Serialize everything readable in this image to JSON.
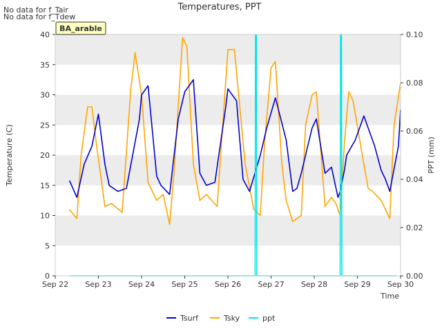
{
  "notes": [
    "No data for f_Tair",
    "No data for f_Tdew"
  ],
  "site_badge": "BA_arable",
  "chart_data": {
    "type": "line",
    "title": "Temperatures, PPT",
    "xlabel": "Time",
    "ylabel": "Temperature (C)",
    "y2label": "PPT (mm)",
    "ylim": [
      0,
      40
    ],
    "y2lim": [
      0.0,
      0.1
    ],
    "xlim": [
      "Sep 22",
      "Sep 30"
    ],
    "x_ticks": [
      "Sep 22",
      "Sep 23",
      "Sep 24",
      "Sep 25",
      "Sep 26",
      "Sep 27",
      "Sep 28",
      "Sep 29",
      "Sep 30"
    ],
    "y_ticks": [
      "0",
      "5",
      "10",
      "15",
      "20",
      "25",
      "30",
      "35",
      "40"
    ],
    "y2_ticks": [
      "0.00",
      "0.02",
      "0.04",
      "0.06",
      "0.08",
      "0.10"
    ],
    "grid": "horizontal bands",
    "legend_placement": "bottom-center",
    "colors": {
      "Tsurf": "#0000cc",
      "Tsky": "#ffa500",
      "ppt": "#00e5e5",
      "band": "#ececec"
    },
    "series": [
      {
        "name": "Tsurf",
        "axis": "left",
        "x": [
          22.33,
          22.5,
          22.67,
          22.85,
          23.0,
          23.15,
          23.25,
          23.45,
          23.65,
          23.95,
          24.0,
          24.15,
          24.35,
          24.45,
          24.65,
          24.85,
          25.0,
          25.2,
          25.35,
          25.5,
          25.7,
          25.95,
          26.0,
          26.2,
          26.35,
          26.5,
          26.75,
          26.9,
          27.1,
          27.35,
          27.5,
          27.6,
          27.7,
          27.95,
          28.05,
          28.25,
          28.4,
          28.55,
          28.6,
          28.7,
          28.75,
          28.95,
          29.15,
          29.4,
          29.55,
          29.65,
          29.75,
          29.95,
          30.0
        ],
        "y": [
          15.8,
          13.0,
          18.5,
          21.5,
          26.8,
          18.5,
          15.0,
          14.0,
          14.5,
          26.0,
          30.0,
          31.5,
          16.5,
          15.0,
          13.5,
          26.0,
          30.5,
          32.5,
          17.0,
          15.0,
          15.5,
          28.0,
          31.0,
          29.0,
          16.0,
          14.0,
          20.0,
          24.5,
          29.5,
          22.5,
          14.0,
          14.5,
          17.0,
          24.5,
          26.0,
          17.0,
          18.0,
          13.0,
          14.0,
          17.5,
          20.0,
          22.5,
          26.5,
          21.5,
          17.5,
          16.0,
          14.0,
          21.5,
          27.5
        ]
      },
      {
        "name": "Tsky",
        "axis": "left",
        "x": [
          22.33,
          22.5,
          22.6,
          22.75,
          22.85,
          22.95,
          23.15,
          23.3,
          23.55,
          23.75,
          23.85,
          24.0,
          24.15,
          24.35,
          24.5,
          24.65,
          24.75,
          24.95,
          25.05,
          25.2,
          25.35,
          25.5,
          25.75,
          26.0,
          26.15,
          26.4,
          26.6,
          26.75,
          26.85,
          27.0,
          27.1,
          27.25,
          27.35,
          27.5,
          27.7,
          27.8,
          27.95,
          28.05,
          28.25,
          28.4,
          28.5,
          28.6,
          28.7,
          28.8,
          28.9,
          29.15,
          29.25,
          29.35,
          29.55,
          29.75,
          29.85,
          30.0
        ],
        "y": [
          11.0,
          9.5,
          20.0,
          28.0,
          28.0,
          22.0,
          11.5,
          12.0,
          10.5,
          31.0,
          37.0,
          30.0,
          15.5,
          12.5,
          13.5,
          8.5,
          17.0,
          39.5,
          38.0,
          18.5,
          12.5,
          13.5,
          11.5,
          37.5,
          37.5,
          18.5,
          11.0,
          10.0,
          22.0,
          34.5,
          35.5,
          18.5,
          12.5,
          9.0,
          10.0,
          25.0,
          30.0,
          30.5,
          11.5,
          13.0,
          12.0,
          10.0,
          22.0,
          30.5,
          29.0,
          18.5,
          14.5,
          14.0,
          12.5,
          9.5,
          25.0,
          32.0
        ]
      },
      {
        "name": "ppt",
        "axis": "right",
        "x": [
          22.33,
          26.63,
          26.64,
          26.66,
          26.67,
          28.6,
          28.61,
          28.63,
          28.64,
          29.9
        ],
        "y": [
          0,
          0,
          0.1,
          0.1,
          0,
          0,
          0.1,
          0.1,
          0,
          0
        ]
      }
    ]
  }
}
